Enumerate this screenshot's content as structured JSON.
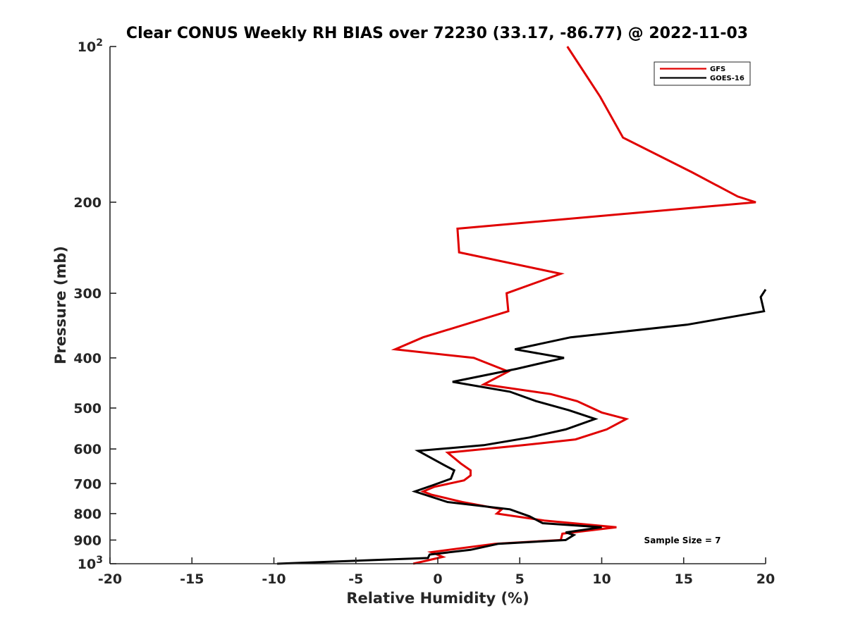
{
  "chart_data": {
    "type": "line",
    "title": "Clear CONUS Weekly RH BIAS over 72230 (33.17, -86.77) @ 2022-11-03",
    "xlabel": "Relative Humidity (%)",
    "ylabel": "Pressure (mb)",
    "xlim": [
      -20,
      20
    ],
    "ylim": [
      100,
      1000
    ],
    "y_scale": "log",
    "y_reversed": true,
    "grid": false,
    "x_ticks": [
      -20,
      -15,
      -10,
      -5,
      0,
      5,
      10,
      15,
      20
    ],
    "x_tick_labels": [
      "-20",
      "-15",
      "-10",
      "-5",
      "0",
      "5",
      "10",
      "15",
      "20"
    ],
    "y_ticks": [
      200,
      300,
      400,
      500,
      600,
      700,
      800,
      900
    ],
    "y_tick_labels": [
      "200",
      "300",
      "400",
      "500",
      "600",
      "700",
      "800",
      "900"
    ],
    "y_limit_labels": [
      {
        "value": 100,
        "base": "10",
        "exponent": "2"
      },
      {
        "value": 1000,
        "base": "10",
        "exponent": "3"
      }
    ],
    "legend_position": "top-right",
    "annotation": "Sample Size = 7",
    "series": [
      {
        "name": "GFS",
        "color": "#e00000",
        "points": [
          {
            "x": 7.9,
            "y": 100
          },
          {
            "x": 9.9,
            "y": 125
          },
          {
            "x": 11.3,
            "y": 150
          },
          {
            "x": 15.5,
            "y": 175
          },
          {
            "x": 18.3,
            "y": 195
          },
          {
            "x": 19.4,
            "y": 200
          },
          {
            "x": 1.2,
            "y": 225
          },
          {
            "x": 1.3,
            "y": 250
          },
          {
            "x": 7.5,
            "y": 275
          },
          {
            "x": 4.2,
            "y": 300
          },
          {
            "x": 4.3,
            "y": 325
          },
          {
            "x": -0.9,
            "y": 365
          },
          {
            "x": -2.6,
            "y": 385
          },
          {
            "x": 2.2,
            "y": 400
          },
          {
            "x": 4.3,
            "y": 425
          },
          {
            "x": 2.8,
            "y": 450
          },
          {
            "x": 6.9,
            "y": 470
          },
          {
            "x": 8.5,
            "y": 485
          },
          {
            "x": 10.0,
            "y": 510
          },
          {
            "x": 11.5,
            "y": 525
          },
          {
            "x": 10.3,
            "y": 550
          },
          {
            "x": 8.4,
            "y": 575
          },
          {
            "x": 5.2,
            "y": 590
          },
          {
            "x": 0.6,
            "y": 610
          },
          {
            "x": 1.4,
            "y": 640
          },
          {
            "x": 2.0,
            "y": 660
          },
          {
            "x": 2.0,
            "y": 675
          },
          {
            "x": 1.6,
            "y": 690
          },
          {
            "x": -0.2,
            "y": 710
          },
          {
            "x": -0.9,
            "y": 725
          },
          {
            "x": -0.4,
            "y": 735
          },
          {
            "x": 1.5,
            "y": 760
          },
          {
            "x": 3.9,
            "y": 785
          },
          {
            "x": 3.6,
            "y": 800
          },
          {
            "x": 6.5,
            "y": 825
          },
          {
            "x": 10.9,
            "y": 850
          },
          {
            "x": 7.6,
            "y": 875
          },
          {
            "x": 7.5,
            "y": 900
          },
          {
            "x": 3.5,
            "y": 915
          },
          {
            "x": -0.4,
            "y": 950
          },
          {
            "x": 0.3,
            "y": 970
          },
          {
            "x": -1.5,
            "y": 1000
          }
        ]
      },
      {
        "name": "GOES-16",
        "color": "#000000",
        "points": [
          {
            "x": 20.0,
            "y": 295
          },
          {
            "x": 19.7,
            "y": 305
          },
          {
            "x": 19.9,
            "y": 325
          },
          {
            "x": 15.2,
            "y": 345
          },
          {
            "x": 8.1,
            "y": 365
          },
          {
            "x": 4.7,
            "y": 385
          },
          {
            "x": 7.7,
            "y": 400
          },
          {
            "x": 4.8,
            "y": 420
          },
          {
            "x": 0.9,
            "y": 445
          },
          {
            "x": 4.4,
            "y": 465
          },
          {
            "x": 6.0,
            "y": 485
          },
          {
            "x": 8.0,
            "y": 505
          },
          {
            "x": 9.6,
            "y": 525
          },
          {
            "x": 7.8,
            "y": 550
          },
          {
            "x": 5.6,
            "y": 570
          },
          {
            "x": 2.8,
            "y": 590
          },
          {
            "x": -1.2,
            "y": 605
          },
          {
            "x": 0.4,
            "y": 645
          },
          {
            "x": 1.0,
            "y": 660
          },
          {
            "x": 0.8,
            "y": 685
          },
          {
            "x": -0.3,
            "y": 705
          },
          {
            "x": -1.4,
            "y": 725
          },
          {
            "x": 0.6,
            "y": 760
          },
          {
            "x": 4.4,
            "y": 785
          },
          {
            "x": 5.6,
            "y": 810
          },
          {
            "x": 6.4,
            "y": 835
          },
          {
            "x": 10.0,
            "y": 850
          },
          {
            "x": 7.8,
            "y": 870
          },
          {
            "x": 8.3,
            "y": 880
          },
          {
            "x": 7.8,
            "y": 900
          },
          {
            "x": 3.7,
            "y": 915
          },
          {
            "x": 2.0,
            "y": 940
          },
          {
            "x": -0.5,
            "y": 960
          },
          {
            "x": -0.6,
            "y": 975
          },
          {
            "x": -9.8,
            "y": 1000
          }
        ]
      }
    ]
  }
}
